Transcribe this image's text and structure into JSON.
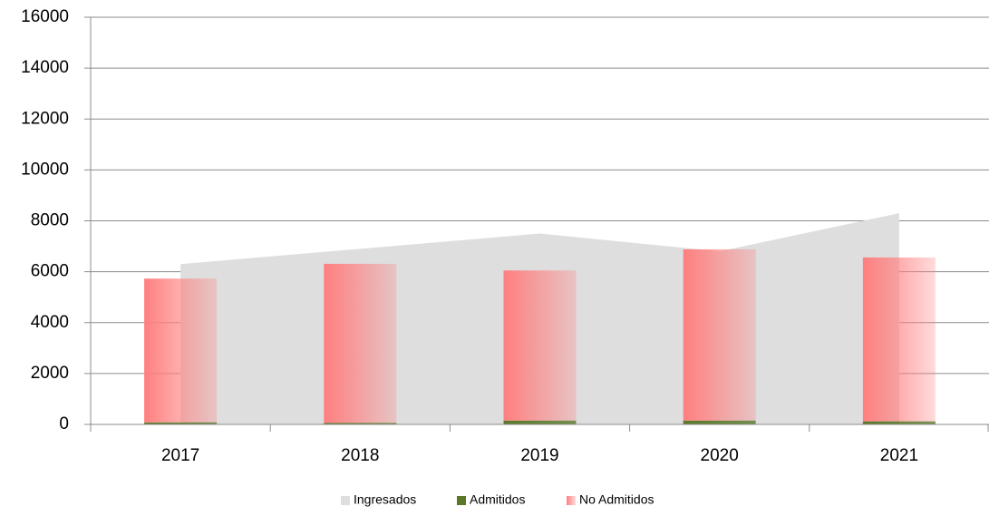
{
  "chart_data": {
    "type": "bar",
    "categories": [
      "2017",
      "2018",
      "2019",
      "2020",
      "2021"
    ],
    "series": [
      {
        "name": "Ingresados",
        "color": "#dedede",
        "kind": "area",
        "values": [
          6300,
          6900,
          7500,
          6800,
          8300
        ]
      },
      {
        "name": "Admitidos",
        "color": "#5a7a2a",
        "kind": "bar",
        "values": [
          80,
          60,
          150,
          150,
          120
        ]
      },
      {
        "name": "No Admitidos",
        "color": "#ff7f7f",
        "kind": "bar",
        "values": [
          5650,
          6250,
          5900,
          6730,
          6440
        ]
      }
    ],
    "stacked": true,
    "ylim": [
      0,
      16000
    ],
    "yticks": [
      0,
      2000,
      4000,
      6000,
      8000,
      10000,
      12000,
      14000,
      16000
    ],
    "grid": true,
    "legend": "bottom"
  }
}
